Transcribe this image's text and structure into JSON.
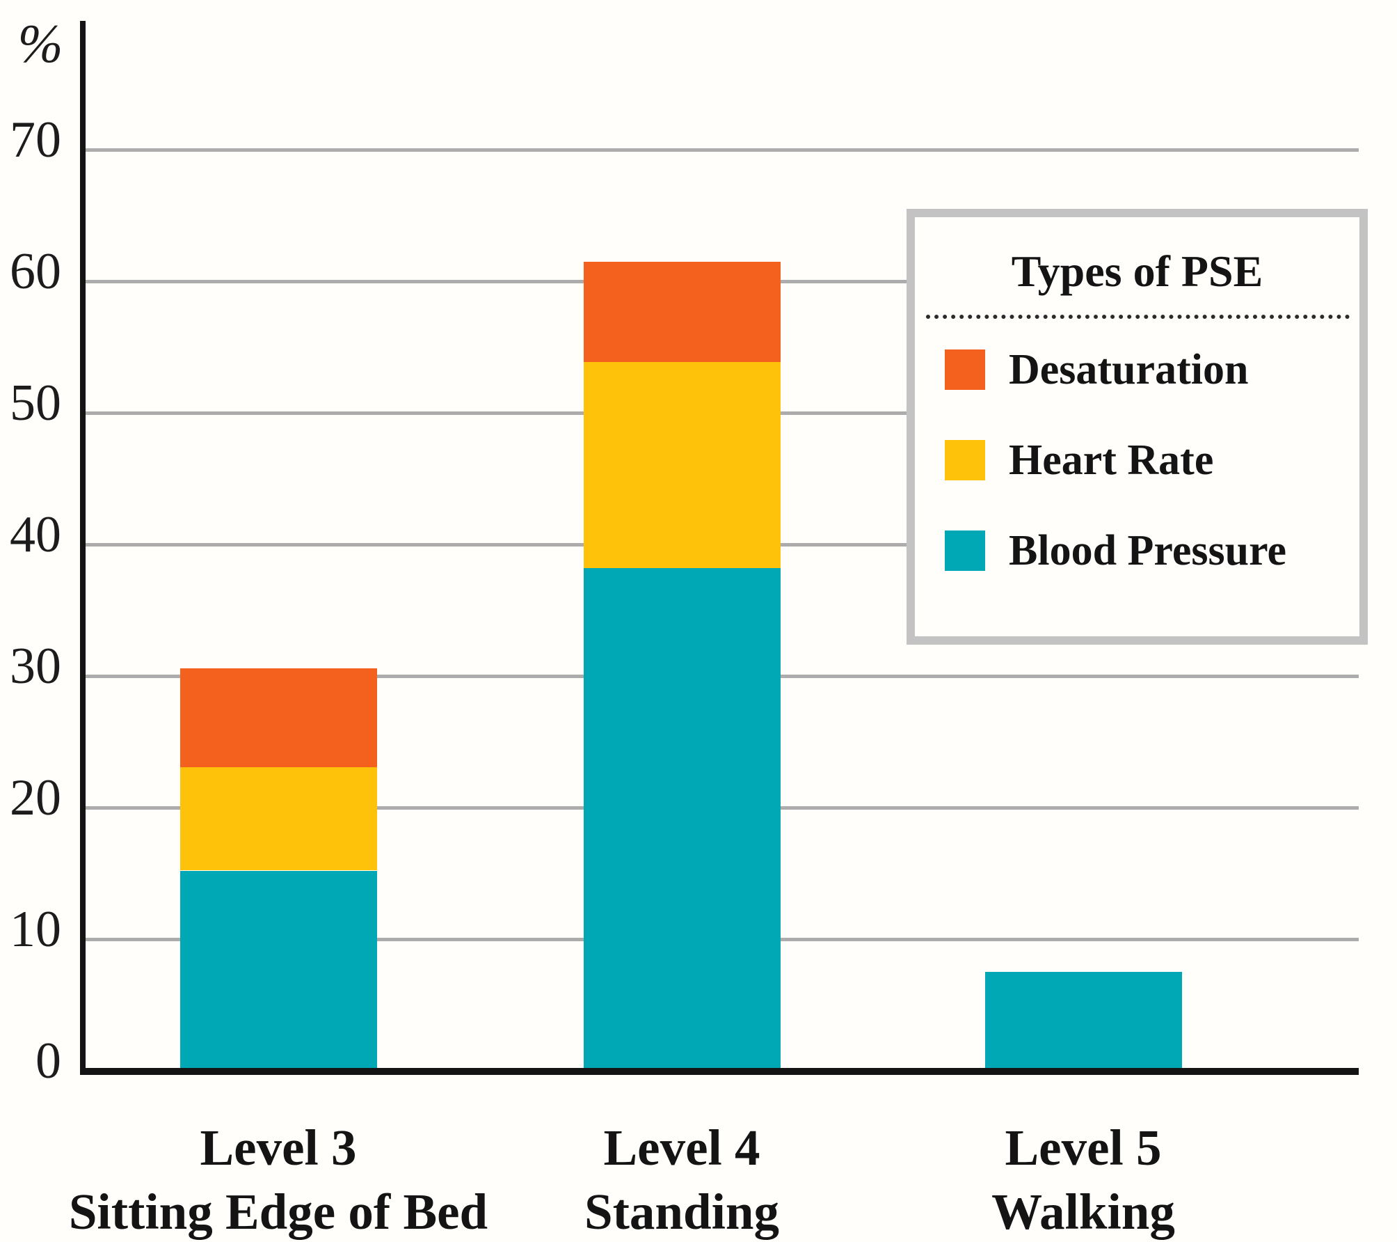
{
  "y_axis": {
    "unit_label": "%",
    "ticks": [
      0,
      10,
      20,
      30,
      40,
      50,
      60,
      70
    ],
    "max": 70
  },
  "chart_data": {
    "type": "bar",
    "subtype": "stacked-vertical",
    "title": "",
    "ylabel": "%",
    "ylim": [
      0,
      70
    ],
    "grid": true,
    "legend_position": "upper right",
    "categories": [
      {
        "line1": "Level 3",
        "line2": "Sitting Edge of Bed"
      },
      {
        "line1": "Level 4",
        "line2": "Standing"
      },
      {
        "line1": "Level 5",
        "line2": "Walking"
      }
    ],
    "series": [
      {
        "name": "Blood Pressure",
        "color": "#00a8b5",
        "values": [
          15.2,
          38.2,
          7.5
        ]
      },
      {
        "name": "Heart Rate",
        "color": "#fec20a",
        "values": [
          7.9,
          15.7,
          0
        ]
      },
      {
        "name": "Desaturation",
        "color": "#f4601e",
        "values": [
          7.5,
          7.6,
          0
        ]
      }
    ],
    "stack_order_bottom_to_top": [
      "Blood Pressure",
      "Heart Rate",
      "Desaturation"
    ],
    "stack_totals": [
      30.6,
      61.5,
      7.5
    ]
  },
  "legend": {
    "title": "Types of PSE",
    "items": [
      {
        "label": "Desaturation",
        "color": "#f4601e"
      },
      {
        "label": "Heart Rate",
        "color": "#fec20a"
      },
      {
        "label": "Blood Pressure",
        "color": "#00a8b5"
      }
    ]
  },
  "colors": {
    "gridline": "#acacac",
    "axis": "#141414",
    "text": "#1c1c1c",
    "legend_border": "#c3c3c3",
    "background": "#fffefb"
  }
}
